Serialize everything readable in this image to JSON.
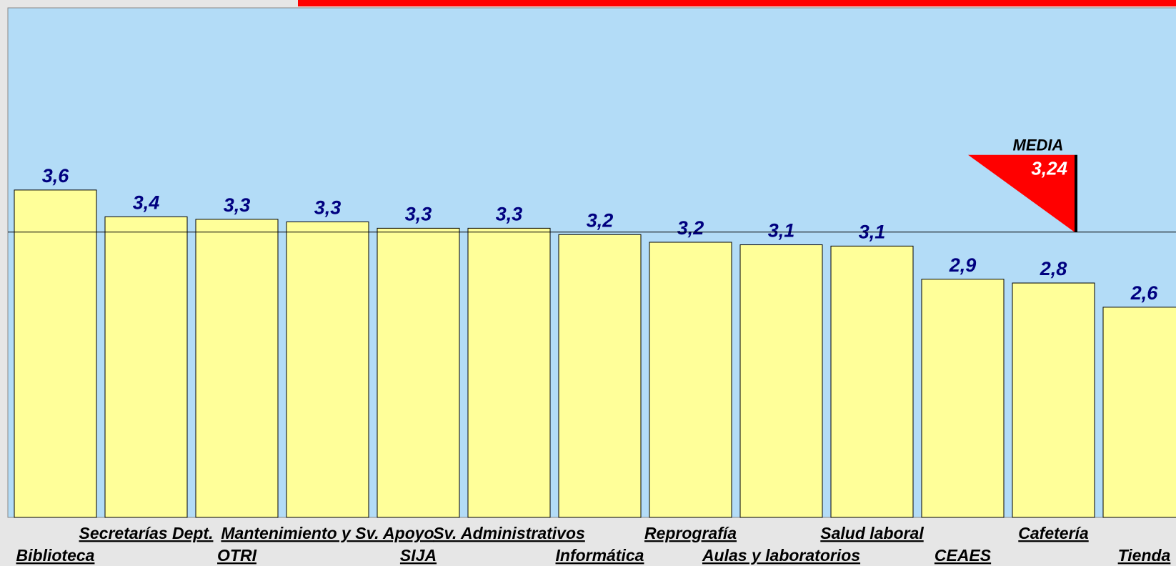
{
  "chart_data": {
    "type": "bar",
    "categories": [
      "Biblioteca",
      "Secretarías Dept.",
      "OTRI",
      "Mantenimiento y Sv. Apoyo",
      "SIJA",
      "Sv. Administrativos",
      "Informática",
      "Reprografía",
      "Aulas y laboratorios",
      "Salud laboral",
      "CEAES",
      "Cafetería",
      "Tienda"
    ],
    "values": [
      3.57,
      3.36,
      3.34,
      3.32,
      3.27,
      3.27,
      3.22,
      3.16,
      3.14,
      3.13,
      2.87,
      2.84,
      2.65
    ],
    "value_labels": [
      "3,6",
      "3,4",
      "3,3",
      "3,3",
      "3,3",
      "3,3",
      "3,2",
      "3,2",
      "3,1",
      "3,1",
      "2,9",
      "2,8",
      "2,6"
    ],
    "color": "#ffff99",
    "ylim": [
      1,
      5
    ],
    "mean": {
      "label": "MEDIA",
      "value": 3.24,
      "value_label": "3,24",
      "color": "#ff0000"
    }
  }
}
